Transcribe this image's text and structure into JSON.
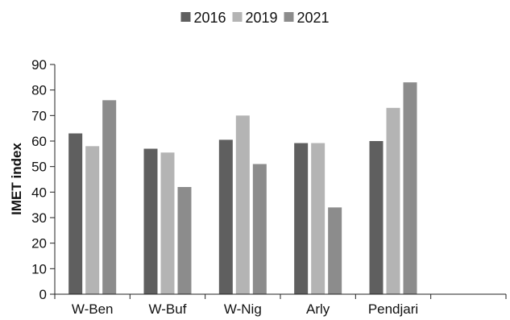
{
  "chart_data": {
    "type": "bar",
    "categories": [
      "W-Ben",
      "W-Buf",
      "W-Nig",
      "Arly",
      "Pendjari"
    ],
    "series": [
      {
        "name": "2016",
        "color": "#5f5f5f",
        "values": [
          63,
          57,
          60.5,
          59.2,
          60
        ]
      },
      {
        "name": "2019",
        "color": "#b4b4b4",
        "values": [
          58,
          55.5,
          70,
          59.2,
          73
        ]
      },
      {
        "name": "2021",
        "color": "#8c8c8c",
        "values": [
          76,
          42,
          51,
          34,
          83
        ]
      }
    ],
    "title": "",
    "xlabel": "",
    "ylabel": "IMET index",
    "ylim": [
      0,
      90
    ],
    "yticks": [
      0,
      10,
      20,
      30,
      40,
      50,
      60,
      70,
      80,
      90
    ],
    "grid": false,
    "legend_position": "top"
  }
}
